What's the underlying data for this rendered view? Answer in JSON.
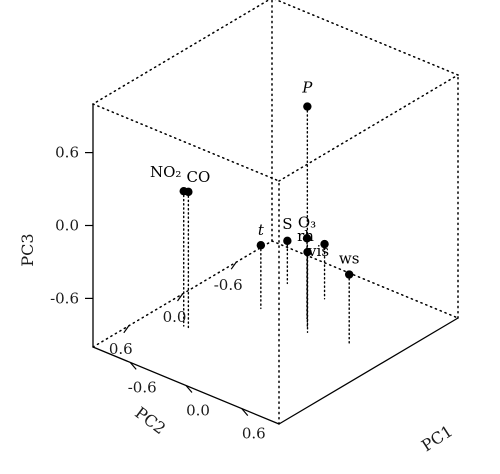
{
  "chart_data": {
    "type": "scatter",
    "projection": "3d",
    "title": "",
    "axes": {
      "x": {
        "label": "PC1",
        "ticks": [
          "-0.6",
          "0.0",
          "0.6"
        ]
      },
      "y": {
        "label": "PC2",
        "ticks": [
          "0.6",
          "0.0",
          "-0.6"
        ]
      },
      "z": {
        "label": "PC3",
        "ticks": [
          "0.6",
          "0.0",
          "-0.6"
        ]
      }
    },
    "style": {
      "point_color": "#000000",
      "box_line": "dotted",
      "drop_lines": true
    },
    "points": [
      {
        "label": "P",
        "label_style": "italic",
        "pc1": 0.15,
        "pc2": -0.2,
        "pc3": 0.82
      },
      {
        "label": "NO₂",
        "pc1": -0.65,
        "pc2": 0.35,
        "pc3": 0.11
      },
      {
        "label": "CO",
        "pc1": -0.6,
        "pc2": 0.35,
        "pc3": 0.12
      },
      {
        "label": "t",
        "label_style": "italic",
        "pc1": -0.35,
        "pc2": -0.2,
        "pc3": -0.48
      },
      {
        "label": "S",
        "pc1": -0.45,
        "pc2": -0.6,
        "pc3": -0.65
      },
      {
        "label": "O₃",
        "pc1": 0.05,
        "pc2": -0.3,
        "pc3": -0.34
      },
      {
        "label": "vis",
        "pc1": -0.05,
        "pc2": -0.6,
        "pc3": -0.55
      },
      {
        "label": "rh",
        "pc1": 0.2,
        "pc2": -0.15,
        "pc3": -0.34
      },
      {
        "label": "ws",
        "pc1": 0.6,
        "pc2": -0.2,
        "pc3": -0.42
      }
    ]
  }
}
